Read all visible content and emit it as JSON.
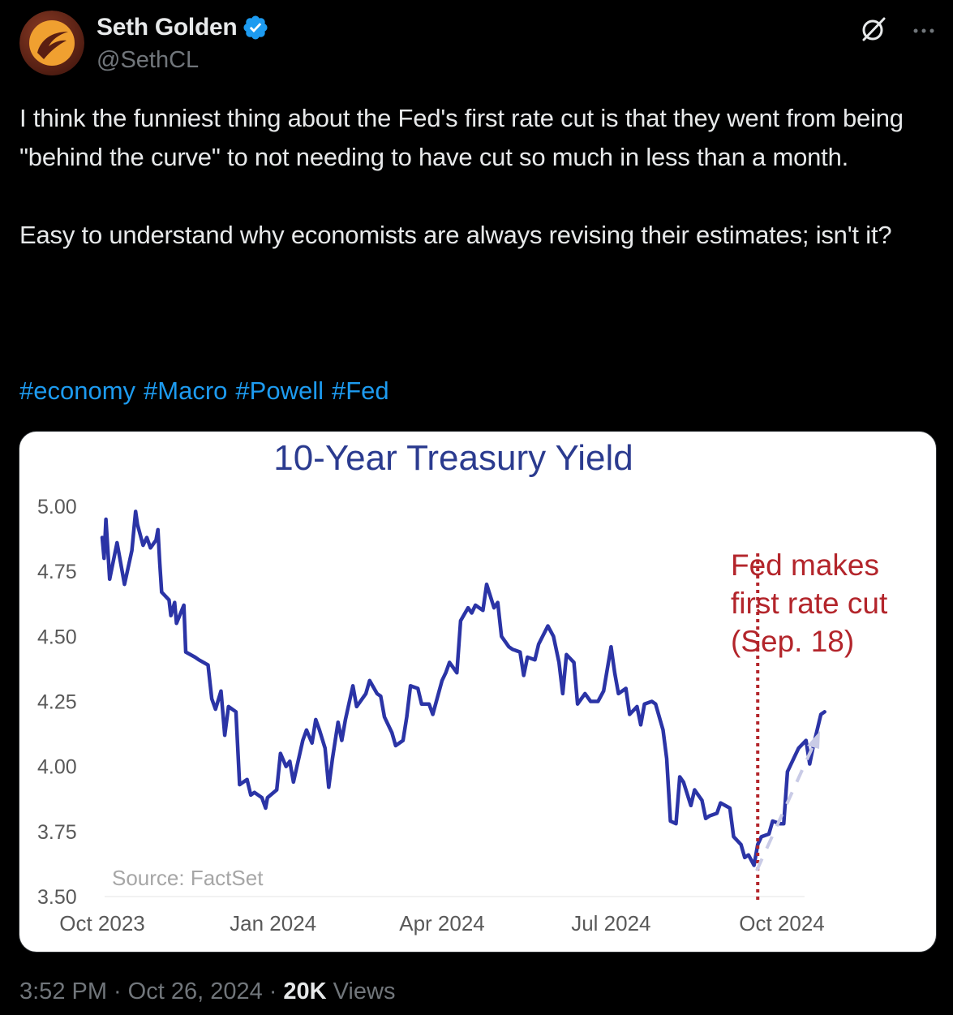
{
  "author": {
    "display_name": "Seth Golden",
    "handle": "@SethCL",
    "verified": true
  },
  "tweet": {
    "paragraph1": "I think the funniest thing about the Fed's first rate cut is that they went from being \"behind the curve\" to not needing to have cut so much in less than a month.",
    "paragraph2": "Easy to understand why economists are always revising their estimates; isn't it?",
    "hashtags": [
      "#economy",
      "#Macro",
      "#Powell",
      "#Fed"
    ]
  },
  "meta": {
    "time": "3:52 PM",
    "date": "Oct 26, 2024",
    "views_count": "20K",
    "views_label": "Views"
  },
  "icons": {
    "avatar": "avatar-logo",
    "verified": "verified-badge-icon",
    "grok": "grok-icon",
    "more": "more-icon"
  },
  "colors": {
    "background": "#000000",
    "link": "#1d9bf0",
    "secondary": "#71767b",
    "verified": "#1d9bf0",
    "line": "#2b34a6",
    "annotation": "#b3252b",
    "title": "#2b3b8f"
  },
  "chart_data": {
    "type": "line",
    "title": "10-Year Treasury Yield",
    "source": "Source: FactSet",
    "ylim": [
      3.5,
      5.0
    ],
    "yticks": [
      "5.00",
      "4.75",
      "4.50",
      "4.25",
      "4.00",
      "3.75",
      "3.50"
    ],
    "xticks": [
      "Oct 2023",
      "Jan 2024",
      "Apr 2024",
      "Jul 2024",
      "Oct 2024"
    ],
    "annotation": {
      "lines": [
        "Fed makes",
        "first rate cut",
        "(Sep. 18)"
      ],
      "date": "2024-09-18"
    },
    "trend_arrow": true,
    "series": [
      {
        "points": [
          [
            "2023-10-01",
            4.88
          ],
          [
            "2023-10-02",
            4.8
          ],
          [
            "2023-10-03",
            4.95
          ],
          [
            "2023-10-05",
            4.72
          ],
          [
            "2023-10-09",
            4.86
          ],
          [
            "2023-10-13",
            4.7
          ],
          [
            "2023-10-17",
            4.83
          ],
          [
            "2023-10-19",
            4.98
          ],
          [
            "2023-10-20",
            4.93
          ],
          [
            "2023-10-23",
            4.85
          ],
          [
            "2023-10-25",
            4.88
          ],
          [
            "2023-10-27",
            4.84
          ],
          [
            "2023-10-30",
            4.87
          ],
          [
            "2023-10-31",
            4.91
          ],
          [
            "2023-11-01",
            4.78
          ],
          [
            "2023-11-02",
            4.67
          ],
          [
            "2023-11-06",
            4.64
          ],
          [
            "2023-11-07",
            4.58
          ],
          [
            "2023-11-09",
            4.63
          ],
          [
            "2023-11-10",
            4.55
          ],
          [
            "2023-11-14",
            4.62
          ],
          [
            "2023-11-15",
            4.44
          ],
          [
            "2023-11-20",
            4.42
          ],
          [
            "2023-11-22",
            4.41
          ],
          [
            "2023-11-27",
            4.39
          ],
          [
            "2023-11-29",
            4.26
          ],
          [
            "2023-12-01",
            4.22
          ],
          [
            "2023-12-04",
            4.29
          ],
          [
            "2023-12-06",
            4.12
          ],
          [
            "2023-12-08",
            4.23
          ],
          [
            "2023-12-12",
            4.21
          ],
          [
            "2023-12-14",
            3.93
          ],
          [
            "2023-12-18",
            3.95
          ],
          [
            "2023-12-20",
            3.89
          ],
          [
            "2023-12-22",
            3.9
          ],
          [
            "2023-12-26",
            3.88
          ],
          [
            "2023-12-28",
            3.84
          ],
          [
            "2023-12-29",
            3.88
          ],
          [
            "2024-01-03",
            3.91
          ],
          [
            "2024-01-05",
            4.05
          ],
          [
            "2024-01-08",
            4.0
          ],
          [
            "2024-01-10",
            4.02
          ],
          [
            "2024-01-12",
            3.94
          ],
          [
            "2024-01-17",
            4.1
          ],
          [
            "2024-01-19",
            4.14
          ],
          [
            "2024-01-22",
            4.09
          ],
          [
            "2024-01-24",
            4.18
          ],
          [
            "2024-01-26",
            4.14
          ],
          [
            "2024-01-29",
            4.07
          ],
          [
            "2024-01-31",
            3.92
          ],
          [
            "2024-02-02",
            4.03
          ],
          [
            "2024-02-05",
            4.17
          ],
          [
            "2024-02-07",
            4.1
          ],
          [
            "2024-02-09",
            4.18
          ],
          [
            "2024-02-13",
            4.31
          ],
          [
            "2024-02-15",
            4.23
          ],
          [
            "2024-02-20",
            4.28
          ],
          [
            "2024-02-22",
            4.33
          ],
          [
            "2024-02-26",
            4.28
          ],
          [
            "2024-02-28",
            4.27
          ],
          [
            "2024-03-01",
            4.19
          ],
          [
            "2024-03-05",
            4.13
          ],
          [
            "2024-03-07",
            4.08
          ],
          [
            "2024-03-11",
            4.1
          ],
          [
            "2024-03-13",
            4.19
          ],
          [
            "2024-03-15",
            4.31
          ],
          [
            "2024-03-19",
            4.3
          ],
          [
            "2024-03-21",
            4.24
          ],
          [
            "2024-03-25",
            4.24
          ],
          [
            "2024-03-27",
            4.2
          ],
          [
            "2024-04-01",
            4.33
          ],
          [
            "2024-04-03",
            4.36
          ],
          [
            "2024-04-05",
            4.4
          ],
          [
            "2024-04-09",
            4.36
          ],
          [
            "2024-04-11",
            4.56
          ],
          [
            "2024-04-15",
            4.61
          ],
          [
            "2024-04-17",
            4.59
          ],
          [
            "2024-04-19",
            4.62
          ],
          [
            "2024-04-23",
            4.6
          ],
          [
            "2024-04-25",
            4.7
          ],
          [
            "2024-04-29",
            4.61
          ],
          [
            "2024-05-01",
            4.63
          ],
          [
            "2024-05-03",
            4.5
          ],
          [
            "2024-05-07",
            4.46
          ],
          [
            "2024-05-09",
            4.45
          ],
          [
            "2024-05-13",
            4.44
          ],
          [
            "2024-05-15",
            4.35
          ],
          [
            "2024-05-17",
            4.42
          ],
          [
            "2024-05-21",
            4.41
          ],
          [
            "2024-05-23",
            4.47
          ],
          [
            "2024-05-28",
            4.54
          ],
          [
            "2024-05-31",
            4.5
          ],
          [
            "2024-06-03",
            4.4
          ],
          [
            "2024-06-05",
            4.28
          ],
          [
            "2024-06-07",
            4.43
          ],
          [
            "2024-06-11",
            4.4
          ],
          [
            "2024-06-13",
            4.24
          ],
          [
            "2024-06-17",
            4.28
          ],
          [
            "2024-06-20",
            4.25
          ],
          [
            "2024-06-24",
            4.25
          ],
          [
            "2024-06-27",
            4.29
          ],
          [
            "2024-07-01",
            4.46
          ],
          [
            "2024-07-03",
            4.36
          ],
          [
            "2024-07-05",
            4.28
          ],
          [
            "2024-07-09",
            4.3
          ],
          [
            "2024-07-11",
            4.2
          ],
          [
            "2024-07-15",
            4.23
          ],
          [
            "2024-07-17",
            4.16
          ],
          [
            "2024-07-19",
            4.24
          ],
          [
            "2024-07-23",
            4.25
          ],
          [
            "2024-07-25",
            4.24
          ],
          [
            "2024-07-29",
            4.14
          ],
          [
            "2024-07-31",
            4.03
          ],
          [
            "2024-08-02",
            3.79
          ],
          [
            "2024-08-05",
            3.78
          ],
          [
            "2024-08-07",
            3.96
          ],
          [
            "2024-08-09",
            3.94
          ],
          [
            "2024-08-13",
            3.85
          ],
          [
            "2024-08-15",
            3.91
          ],
          [
            "2024-08-19",
            3.87
          ],
          [
            "2024-08-21",
            3.8
          ],
          [
            "2024-08-23",
            3.81
          ],
          [
            "2024-08-27",
            3.82
          ],
          [
            "2024-08-29",
            3.86
          ],
          [
            "2024-09-03",
            3.84
          ],
          [
            "2024-09-05",
            3.73
          ],
          [
            "2024-09-09",
            3.7
          ],
          [
            "2024-09-11",
            3.65
          ],
          [
            "2024-09-13",
            3.66
          ],
          [
            "2024-09-16",
            3.62
          ],
          [
            "2024-09-18",
            3.7
          ],
          [
            "2024-09-20",
            3.73
          ],
          [
            "2024-09-24",
            3.74
          ],
          [
            "2024-09-26",
            3.79
          ],
          [
            "2024-09-30",
            3.78
          ],
          [
            "2024-10-02",
            3.78
          ],
          [
            "2024-10-04",
            3.98
          ],
          [
            "2024-10-08",
            4.04
          ],
          [
            "2024-10-10",
            4.07
          ],
          [
            "2024-10-14",
            4.1
          ],
          [
            "2024-10-16",
            4.01
          ],
          [
            "2024-10-18",
            4.08
          ],
          [
            "2024-10-22",
            4.2
          ],
          [
            "2024-10-24",
            4.21
          ]
        ]
      }
    ]
  }
}
